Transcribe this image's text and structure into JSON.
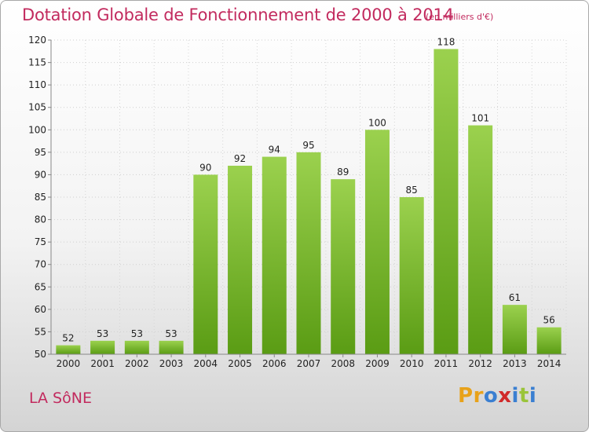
{
  "header": {
    "title": "Dotation Globale de Fonctionnement de 2000 à 2014",
    "subtitle": "(en milliers d'€)"
  },
  "footer": {
    "commune": "LA SôNE",
    "logo_letters": [
      "P",
      "r",
      "o",
      "x",
      "i",
      "t",
      "i"
    ]
  },
  "colors": {
    "title": "#c22a5e",
    "bar_top": "#9bd14e",
    "bar_bottom": "#5a9c14",
    "logo": [
      "#e8a21a",
      "#e8a21a",
      "#3a7fd1",
      "#d12a2a",
      "#3a7fd1",
      "#9ac43a",
      "#3a7fd1"
    ]
  },
  "chart_data": {
    "type": "bar",
    "title": "Dotation Globale de Fonctionnement de 2000 à 2014",
    "subtitle": "(en milliers d'€)",
    "xlabel": "",
    "ylabel": "",
    "categories": [
      "2000",
      "2001",
      "2002",
      "2003",
      "2004",
      "2005",
      "2006",
      "2007",
      "2008",
      "2009",
      "2010",
      "2011",
      "2012",
      "2013",
      "2014"
    ],
    "values": [
      52,
      53,
      53,
      53,
      90,
      92,
      94,
      95,
      89,
      100,
      85,
      118,
      101,
      61,
      56
    ],
    "ylim": [
      50,
      120
    ],
    "yticks": [
      50,
      55,
      60,
      65,
      70,
      75,
      80,
      85,
      90,
      95,
      100,
      105,
      110,
      115,
      120
    ],
    "grid": true,
    "data_labels": true
  }
}
